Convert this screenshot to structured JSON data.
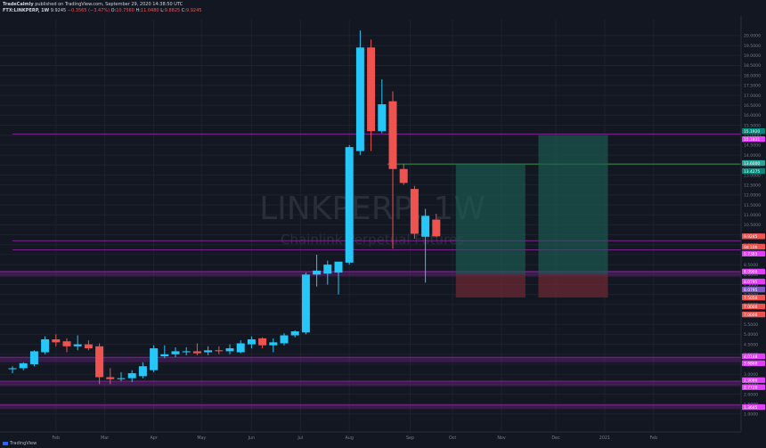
{
  "header": {
    "publisher": "TradeCalmly",
    "published_text": "published on TradingView.com, September 29, 2020 14:38:50 UTC",
    "symbol": "FTX:LINKPERP, 1W",
    "last": "9.9245",
    "change": "−0.3565 (−3.47%)",
    "o_label": "O:",
    "o_value": "10.7560",
    "h_label": "H:",
    "h_value": "11.0480",
    "l_label": "L:",
    "l_value": "9.8825",
    "c_label": "C:",
    "c_value": "9.9245"
  },
  "footer": {
    "brand": "TradingView"
  },
  "colors": {
    "up": "#26c6f9",
    "down": "#ef5350",
    "background": "#131722",
    "grid": "#1e222d",
    "axis_text": "#787b86",
    "watermark": "#2a2e39",
    "zone_green": "#1b5e53",
    "zone_red": "#6b2a33",
    "magenta_band": "#9c27b0"
  },
  "chart_data": {
    "type": "candlestick",
    "watermark": {
      "symbol": "LINKPERP, 1W",
      "name": "Chainlink Perpetual Futures"
    },
    "ylim": [
      0.1,
      20.8
    ],
    "y_ticks": [
      "1.0000",
      "1.5000",
      "2.0000",
      "2.5000",
      "3.0000",
      "3.5000",
      "4.0000",
      "4.5000",
      "5.0000",
      "5.5000",
      "6.0000",
      "6.5000",
      "7.0000",
      "7.5000",
      "8.0000",
      "8.5000",
      "9.0000",
      "9.5000",
      "10.0000",
      "10.5000",
      "11.0000",
      "11.5000",
      "12.0000",
      "12.5000",
      "13.0000",
      "13.5000",
      "14.0000",
      "14.5000",
      "15.0000",
      "15.5000",
      "16.0000",
      "16.5000",
      "17.0000",
      "17.5000",
      "18.0000",
      "18.5000",
      "19.0000",
      "19.5000",
      "20.0000"
    ],
    "x_labels": [
      "Feb",
      "Mar",
      "Apr",
      "May",
      "Jun",
      "Jul",
      "Aug",
      "Sep",
      "Oct",
      "Nov",
      "Dec",
      "2021",
      "Feb"
    ],
    "x_label_weeks": [
      4,
      8.5,
      13,
      17.4,
      22,
      26.5,
      31,
      36.6,
      40.5,
      45,
      50,
      54.5,
      59
    ],
    "candles": [
      {
        "week": 0,
        "o": 3.25,
        "h": 3.4,
        "l": 3.05,
        "c": 3.3
      },
      {
        "week": 1,
        "o": 3.3,
        "h": 3.6,
        "l": 3.2,
        "c": 3.55
      },
      {
        "week": 2,
        "o": 3.5,
        "h": 4.2,
        "l": 3.4,
        "c": 4.15
      },
      {
        "week": 3,
        "o": 4.1,
        "h": 4.9,
        "l": 4.0,
        "c": 4.75
      },
      {
        "week": 4,
        "o": 4.75,
        "h": 5.0,
        "l": 4.4,
        "c": 4.6
      },
      {
        "week": 5,
        "o": 4.65,
        "h": 4.8,
        "l": 4.1,
        "c": 4.4
      },
      {
        "week": 6,
        "o": 4.4,
        "h": 4.95,
        "l": 4.2,
        "c": 4.5
      },
      {
        "week": 7,
        "o": 4.5,
        "h": 4.7,
        "l": 4.2,
        "c": 4.3
      },
      {
        "week": 8,
        "o": 4.4,
        "h": 4.55,
        "l": 2.5,
        "c": 2.85
      },
      {
        "week": 9,
        "o": 2.85,
        "h": 3.3,
        "l": 2.5,
        "c": 2.75
      },
      {
        "week": 10,
        "o": 2.75,
        "h": 3.1,
        "l": 2.65,
        "c": 2.8
      },
      {
        "week": 11,
        "o": 2.8,
        "h": 3.2,
        "l": 2.6,
        "c": 3.05
      },
      {
        "week": 12,
        "o": 2.9,
        "h": 3.6,
        "l": 2.8,
        "c": 3.4
      },
      {
        "week": 13,
        "o": 3.2,
        "h": 4.45,
        "l": 3.1,
        "c": 4.3
      },
      {
        "week": 14,
        "o": 3.9,
        "h": 4.45,
        "l": 3.8,
        "c": 4.0
      },
      {
        "week": 15,
        "o": 4.0,
        "h": 4.35,
        "l": 3.85,
        "c": 4.15
      },
      {
        "week": 16,
        "o": 4.1,
        "h": 4.35,
        "l": 3.95,
        "c": 4.15
      },
      {
        "week": 17,
        "o": 4.15,
        "h": 4.55,
        "l": 3.95,
        "c": 4.05
      },
      {
        "week": 18,
        "o": 4.1,
        "h": 4.4,
        "l": 3.95,
        "c": 4.2
      },
      {
        "week": 19,
        "o": 4.2,
        "h": 4.4,
        "l": 4.0,
        "c": 4.15
      },
      {
        "week": 20,
        "o": 4.15,
        "h": 4.5,
        "l": 4.0,
        "c": 4.3
      },
      {
        "week": 21,
        "o": 4.1,
        "h": 4.7,
        "l": 4.05,
        "c": 4.55
      },
      {
        "week": 22,
        "o": 4.5,
        "h": 4.9,
        "l": 4.3,
        "c": 4.75
      },
      {
        "week": 23,
        "o": 4.8,
        "h": 4.85,
        "l": 4.3,
        "c": 4.45
      },
      {
        "week": 24,
        "o": 4.45,
        "h": 4.8,
        "l": 4.1,
        "c": 4.6
      },
      {
        "week": 25,
        "o": 4.55,
        "h": 5.05,
        "l": 4.45,
        "c": 4.95
      },
      {
        "week": 26,
        "o": 4.95,
        "h": 5.2,
        "l": 4.85,
        "c": 5.15
      },
      {
        "week": 27,
        "o": 5.1,
        "h": 8.1,
        "l": 5.0,
        "c": 8.0
      },
      {
        "week": 28,
        "o": 8.0,
        "h": 9.0,
        "l": 7.4,
        "c": 8.2
      },
      {
        "week": 29,
        "o": 8.05,
        "h": 8.7,
        "l": 7.5,
        "c": 8.5
      },
      {
        "week": 30,
        "o": 8.1,
        "h": 8.6,
        "l": 7.0,
        "c": 8.65
      },
      {
        "week": 31,
        "o": 8.6,
        "h": 14.5,
        "l": 8.5,
        "c": 14.4
      },
      {
        "week": 32,
        "o": 14.2,
        "h": 20.25,
        "l": 14.0,
        "c": 19.4
      },
      {
        "week": 33,
        "o": 19.4,
        "h": 19.8,
        "l": 14.2,
        "c": 15.2
      },
      {
        "week": 34,
        "o": 15.2,
        "h": 17.8,
        "l": 15.1,
        "c": 16.55
      },
      {
        "week": 35,
        "o": 16.7,
        "h": 17.2,
        "l": 9.3,
        "c": 13.3
      },
      {
        "week": 36,
        "o": 13.3,
        "h": 13.55,
        "l": 12.5,
        "c": 12.6
      },
      {
        "week": 37,
        "o": 12.3,
        "h": 12.45,
        "l": 9.8,
        "c": 10.05
      },
      {
        "week": 38,
        "o": 9.9,
        "h": 11.3,
        "l": 7.6,
        "c": 10.95
      },
      {
        "week": 39,
        "o": 10.76,
        "h": 11.05,
        "l": 9.88,
        "c": 9.92
      }
    ],
    "position_boxes": [
      {
        "week_start": 40.8,
        "week_end": 47.2,
        "entry": 8.0,
        "target": 13.55,
        "stop": 6.85
      },
      {
        "week_start": 48.4,
        "week_end": 54.8,
        "entry": 8.0,
        "target": 15.0,
        "stop": 6.85
      }
    ],
    "horizontal_lines": [
      {
        "y": 13.55,
        "week_start": 34.5,
        "color": "#4caf50"
      },
      {
        "y": 15.05,
        "week_start": 0,
        "color": "#9c27b0"
      },
      {
        "y": 9.7,
        "week_start": 0,
        "color": "#9c27b0"
      },
      {
        "y": 9.25,
        "week_start": 0,
        "color": "#9c27b0"
      }
    ],
    "bands": [
      {
        "y1": 7.9,
        "y2": 8.15,
        "color": "#9c27b0"
      },
      {
        "y1": 3.6,
        "y2": 3.85,
        "color": "#9c27b0"
      },
      {
        "y1": 2.4,
        "y2": 2.65,
        "color": "#9c27b0"
      },
      {
        "y1": 1.25,
        "y2": 1.45,
        "color": "#9c27b0"
      }
    ],
    "price_labels": [
      {
        "y": 15.2,
        "text": "15.1920",
        "color": "#00897b"
      },
      {
        "y": 14.8,
        "text": "15.1831",
        "color": "#e040fb"
      },
      {
        "y": 13.6,
        "text": "13.6000",
        "color": "#26a69a"
      },
      {
        "y": 13.2,
        "text": "13.4275",
        "color": "#00897b"
      },
      {
        "y": 9.92,
        "text": "9.9245",
        "color": "#ef5350"
      },
      {
        "y": 9.4,
        "text": "9d 10h",
        "color": "#ef5350"
      },
      {
        "y": 9.05,
        "text": "9.7385",
        "color": "#e040fb"
      },
      {
        "y": 8.15,
        "text": "8.0900",
        "color": "#e040fb"
      },
      {
        "y": 7.65,
        "text": "8.0795",
        "color": "#e040fb"
      },
      {
        "y": 7.25,
        "text": "8.0795",
        "color": "#7e57c2"
      },
      {
        "y": 6.85,
        "text": "7.5050",
        "color": "#ef5350"
      },
      {
        "y": 6.4,
        "text": "7.0000",
        "color": "#ef5350"
      },
      {
        "y": 6.0,
        "text": "7.0000",
        "color": "#ef5350"
      },
      {
        "y": 3.9,
        "text": "4.0148",
        "color": "#e040fb"
      },
      {
        "y": 3.55,
        "text": "3.6860",
        "color": "#e040fb"
      },
      {
        "y": 2.7,
        "text": "2.9080",
        "color": "#e040fb"
      },
      {
        "y": 2.35,
        "text": "2.7720",
        "color": "#e040fb"
      },
      {
        "y": 1.35,
        "text": "1.3645",
        "color": "#e040fb"
      }
    ]
  }
}
